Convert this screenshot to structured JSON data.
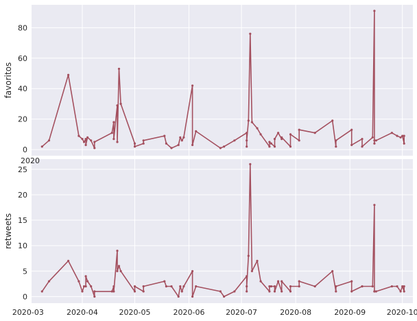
{
  "chart_data": [
    {
      "type": "line",
      "ylabel": "favoritos",
      "xlabel": "",
      "ylim": [
        -4,
        95
      ],
      "yticks": [
        0,
        20,
        40,
        60,
        80
      ],
      "grid": true,
      "series_color": "#a4505f",
      "x": [
        "2020-03-09",
        "2020-03-13",
        "2020-03-24",
        "2020-03-30",
        "2020-04-01",
        "2020-04-02",
        "2020-04-03",
        "2020-04-03",
        "2020-04-04",
        "2020-04-06",
        "2020-04-08",
        "2020-04-08",
        "2020-04-18",
        "2020-04-19",
        "2020-04-19",
        "2020-04-21",
        "2020-04-21",
        "2020-04-22",
        "2020-04-23",
        "2020-05-01",
        "2020-05-01",
        "2020-05-06",
        "2020-05-06",
        "2020-05-18",
        "2020-05-19",
        "2020-05-22",
        "2020-05-26",
        "2020-05-27",
        "2020-05-28",
        "2020-05-29",
        "2020-06-03",
        "2020-06-03",
        "2020-06-05",
        "2020-06-19",
        "2020-06-21",
        "2020-06-27",
        "2020-07-04",
        "2020-07-04",
        "2020-07-04",
        "2020-07-05",
        "2020-07-06",
        "2020-07-07",
        "2020-07-10",
        "2020-07-12",
        "2020-07-17",
        "2020-07-17",
        "2020-07-18",
        "2020-07-20",
        "2020-07-20",
        "2020-07-22",
        "2020-07-24",
        "2020-07-24",
        "2020-07-29",
        "2020-07-29",
        "2020-08-03",
        "2020-08-03",
        "2020-08-12",
        "2020-08-22",
        "2020-08-24",
        "2020-08-24",
        "2020-09-02",
        "2020-09-02",
        "2020-09-08",
        "2020-09-08",
        "2020-09-14",
        "2020-09-15",
        "2020-09-15",
        "2020-09-15",
        "2020-09-16",
        "2020-09-25",
        "2020-09-28",
        "2020-09-30",
        "2020-10-01",
        "2020-10-02",
        "2020-10-02"
      ],
      "series": [
        {
          "values": [
            2,
            6,
            49,
            9,
            7,
            5,
            7,
            3,
            8,
            6,
            1,
            5,
            11,
            18,
            7,
            29,
            5,
            53,
            30,
            4,
            2,
            4,
            6,
            9,
            4,
            1,
            3,
            8,
            6,
            8,
            42,
            3,
            12,
            1,
            2,
            6,
            11,
            2,
            6,
            19,
            76,
            18,
            14,
            10,
            2,
            5,
            4,
            2,
            7,
            11,
            7,
            8,
            2,
            10,
            6,
            13,
            11,
            19,
            2,
            6,
            13,
            3,
            7,
            2,
            8,
            91,
            4,
            6,
            6,
            11,
            9,
            8,
            9,
            4,
            9
          ]
        }
      ]
    },
    {
      "type": "line",
      "ylabel": "retweets",
      "xlabel": "",
      "ylim": [
        -1.3,
        27
      ],
      "yticks": [
        0,
        5,
        10,
        15,
        20,
        25
      ],
      "grid": true,
      "series_color": "#a4505f",
      "x_tick_labels": [
        "2020-03",
        "2020-04",
        "2020-05",
        "2020-06",
        "2020-07",
        "2020-08",
        "2020-09",
        "2020-10"
      ],
      "x": [
        "2020-03-09",
        "2020-03-13",
        "2020-03-24",
        "2020-03-30",
        "2020-04-01",
        "2020-04-02",
        "2020-04-03",
        "2020-04-03",
        "2020-04-04",
        "2020-04-06",
        "2020-04-08",
        "2020-04-08",
        "2020-04-18",
        "2020-04-19",
        "2020-04-19",
        "2020-04-21",
        "2020-04-21",
        "2020-04-22",
        "2020-04-23",
        "2020-05-01",
        "2020-05-01",
        "2020-05-06",
        "2020-05-06",
        "2020-05-18",
        "2020-05-19",
        "2020-05-22",
        "2020-05-26",
        "2020-05-27",
        "2020-05-28",
        "2020-05-29",
        "2020-06-03",
        "2020-06-03",
        "2020-06-05",
        "2020-06-19",
        "2020-06-21",
        "2020-06-27",
        "2020-07-04",
        "2020-07-04",
        "2020-07-04",
        "2020-07-05",
        "2020-07-06",
        "2020-07-07",
        "2020-07-10",
        "2020-07-12",
        "2020-07-17",
        "2020-07-17",
        "2020-07-18",
        "2020-07-20",
        "2020-07-20",
        "2020-07-22",
        "2020-07-24",
        "2020-07-24",
        "2020-07-29",
        "2020-07-29",
        "2020-08-03",
        "2020-08-03",
        "2020-08-12",
        "2020-08-22",
        "2020-08-24",
        "2020-08-24",
        "2020-09-02",
        "2020-09-02",
        "2020-09-08",
        "2020-09-08",
        "2020-09-14",
        "2020-09-15",
        "2020-09-15",
        "2020-09-15",
        "2020-09-16",
        "2020-09-25",
        "2020-09-28",
        "2020-09-30",
        "2020-10-01",
        "2020-10-02",
        "2020-10-02"
      ],
      "series": [
        {
          "values": [
            1,
            3,
            7,
            3,
            1,
            2,
            2,
            4,
            3,
            2,
            0,
            1,
            1,
            2,
            1,
            9,
            5,
            6,
            5,
            1,
            2,
            1,
            2,
            3,
            2,
            2,
            0,
            2,
            1,
            2,
            5,
            0,
            2,
            1,
            0,
            1,
            4,
            1,
            2,
            8,
            26,
            5,
            7,
            3,
            1,
            2,
            2,
            2,
            1,
            3,
            1,
            3,
            1,
            2,
            2,
            3,
            2,
            5,
            1,
            2,
            3,
            1,
            2,
            2,
            2,
            18,
            1,
            1,
            1,
            2,
            2,
            1,
            2,
            1,
            2
          ]
        }
      ]
    }
  ],
  "x_label_fragment": "2020"
}
